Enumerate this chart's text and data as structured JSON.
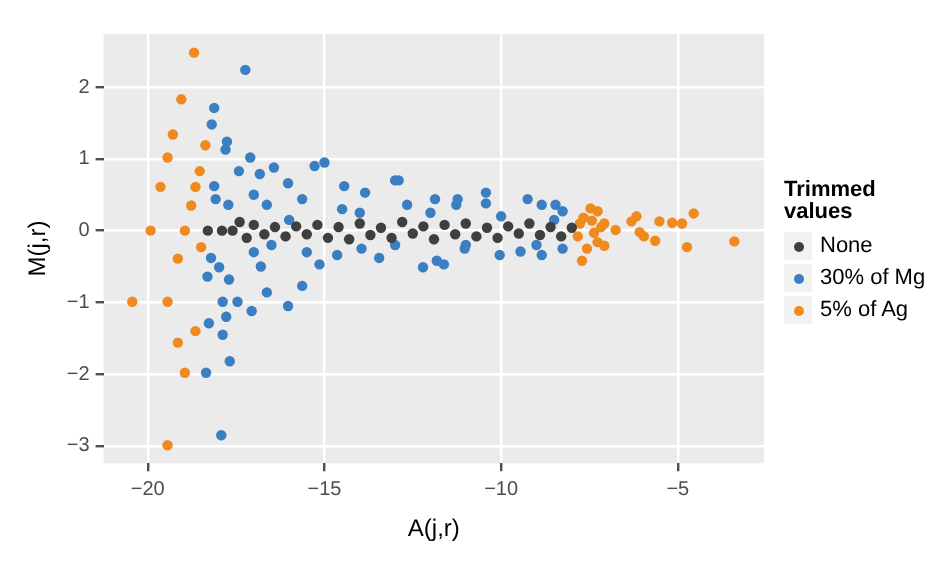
{
  "chart_data": {
    "type": "scatter",
    "xlabel": "A(j,r)",
    "ylabel": "M(j,r)",
    "legend_title": "Trimmed values",
    "legend": "right",
    "grid": true,
    "marker": "circle",
    "xlim": [
      -21.25,
      -2.56
    ],
    "ylim": [
      -3.24,
      2.74
    ],
    "xticks": [
      -20,
      -15,
      -10,
      -5
    ],
    "yticks": [
      -3,
      -2,
      -1,
      0,
      1,
      2
    ],
    "series": [
      {
        "name": "None",
        "color": "#3f3f3f",
        "x": [
          -18.3,
          -17.9,
          -17.6,
          -17.4,
          -17.2,
          -17.0,
          -16.7,
          -16.4,
          -16.1,
          -15.8,
          -15.5,
          -15.2,
          -14.9,
          -14.6,
          -14.3,
          -14.0,
          -13.7,
          -13.4,
          -13.1,
          -12.8,
          -12.5,
          -12.2,
          -11.9,
          -11.6,
          -11.3,
          -11.0,
          -10.7,
          -10.4,
          -10.1,
          -9.8,
          -9.5,
          -9.2,
          -8.9,
          -8.6,
          -8.3,
          -8.0
        ],
        "values": [
          0,
          0,
          0,
          0.12,
          -0.1,
          0.08,
          -0.05,
          0.05,
          -0.08,
          0.06,
          -0.05,
          0.08,
          -0.1,
          0.05,
          -0.12,
          0.1,
          -0.06,
          0.04,
          -0.1,
          0.12,
          -0.04,
          0.06,
          -0.12,
          0.08,
          -0.05,
          0.1,
          -0.08,
          0.04,
          -0.1,
          0.06,
          -0.04,
          0.1,
          -0.06,
          0.05,
          -0.08,
          0.04
        ]
      },
      {
        "name": "30% of Mg",
        "color": "#3a7fc1",
        "x": [
          -17.24,
          -18.12,
          -18.19,
          -17.76,
          -17.8,
          -17.92,
          -17.68,
          -18.35,
          -18.27,
          -17.88,
          -17.78,
          -17.88,
          -17.46,
          -17.06,
          -17.1,
          -17.42,
          -18.12,
          -18.08,
          -17.72,
          -18.21,
          -17.98,
          -17.7,
          -18.31,
          -16.83,
          -16.43,
          -16.03,
          -15.28,
          -15.0,
          -13.0,
          -16.63,
          -16.03,
          -15.63,
          -15.14,
          -14.64,
          -13.95,
          -13.45,
          -16.63,
          -15.63,
          -14.44,
          -13.85,
          -12.66,
          -11.87,
          -11.27,
          -12.21,
          -11.82,
          -11.23,
          -10.43,
          -10.43,
          -9.25,
          -8.85,
          -8.46,
          -8.26,
          -9.45,
          -8.85,
          -8.26,
          -10.04,
          -11.03,
          -12.9,
          -11.62,
          -14.0,
          -13.0,
          -12.0,
          -11.0,
          -10.0,
          -9.0,
          -8.5,
          -16.0,
          -15.5,
          -14.5,
          -16.5,
          -17.0,
          -17.0,
          -16.8
        ],
        "values": [
          2.24,
          1.71,
          1.48,
          1.24,
          1.13,
          -2.85,
          -1.82,
          -1.98,
          -1.29,
          -1.45,
          -1.2,
          -0.99,
          -0.99,
          -1.12,
          1.02,
          0.83,
          0.62,
          0.44,
          0.36,
          -0.38,
          -0.51,
          -0.68,
          -0.64,
          0.79,
          0.88,
          0.66,
          0.9,
          0.95,
          0.7,
          -0.86,
          -1.05,
          -0.77,
          -0.47,
          -0.34,
          -0.25,
          -0.38,
          0.36,
          0.44,
          0.62,
          0.53,
          0.36,
          0.44,
          0.36,
          -0.51,
          -0.42,
          0.44,
          0.53,
          0.38,
          0.44,
          0.36,
          0.36,
          0.27,
          -0.29,
          -0.34,
          -0.25,
          -0.34,
          -0.25,
          0.7,
          -0.47,
          0.25,
          -0.2,
          0.25,
          -0.2,
          0.2,
          -0.2,
          0.15,
          0.15,
          -0.3,
          0.3,
          -0.2,
          -0.3,
          0.5,
          -0.5
        ]
      },
      {
        "name": "5% of Ag",
        "color": "#f08a1e",
        "x": [
          -18.69,
          -19.05,
          -19.29,
          -19.44,
          -18.37,
          -19.64,
          -18.53,
          -18.65,
          -18.77,
          -19.92,
          -18.95,
          -18.49,
          -19.15,
          -20.44,
          -19.44,
          -18.65,
          -19.15,
          -18.95,
          -19.44,
          -3.4,
          -4.74,
          -4.55,
          -4.88,
          -5.16,
          -5.52,
          -5.64,
          -6.17,
          -6.31,
          -6.08,
          -5.96,
          -6.76,
          -7.08,
          -7.27,
          -7.47,
          -7.71,
          -7.57,
          -7.27,
          -7.08,
          -7.37,
          -7.77,
          -7.67,
          -7.17,
          -7.83,
          -7.43
        ],
        "values": [
          2.48,
          1.83,
          1.34,
          1.02,
          1.19,
          0.61,
          0.83,
          0.61,
          0.35,
          0,
          0,
          -0.23,
          -0.39,
          -0.99,
          -0.99,
          -1.4,
          -1.56,
          -1.98,
          -2.99,
          -0.15,
          -0.23,
          0.24,
          0.1,
          0.11,
          0.13,
          -0.14,
          0.2,
          0.13,
          -0.02,
          -0.08,
          0.01,
          0.1,
          0.27,
          0.31,
          -0.42,
          -0.25,
          -0.16,
          -0.21,
          -0.03,
          0.1,
          0.18,
          0.05,
          -0.08,
          0.14
        ]
      }
    ]
  }
}
